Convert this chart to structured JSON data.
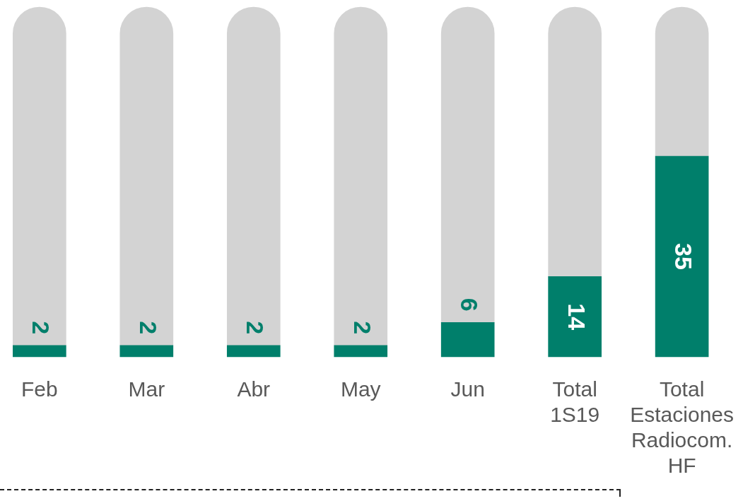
{
  "chart_data": {
    "type": "bar",
    "categories": [
      "Feb",
      "Mar",
      "Abr",
      "May",
      "Jun",
      "Total 1S19",
      "Total Estaciones Radiocom. HF"
    ],
    "series": [
      {
        "color": "#007f6b",
        "values": [
          2,
          2,
          2,
          2,
          6,
          14,
          35
        ],
        "value_labels": [
          "2",
          "2",
          "2",
          "2",
          "6",
          "14",
          "35"
        ]
      },
      {
        "color": "#d3d3d3",
        "values": [
          59,
          59,
          59,
          59,
          55,
          47,
          26
        ]
      }
    ],
    "stacked": true,
    "ylim": [
      0,
      61
    ],
    "tick_labels": "x",
    "grid": false,
    "legend": false
  }
}
